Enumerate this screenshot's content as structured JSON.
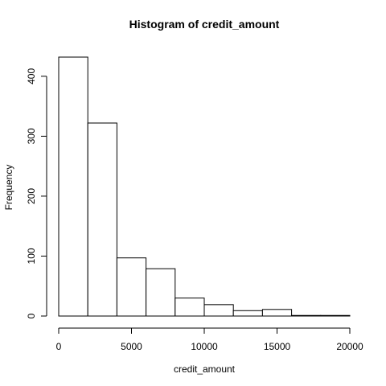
{
  "chart_data": {
    "type": "bar",
    "title": "Histogram of credit_amount",
    "xlabel": "credit_amount",
    "ylabel": "Frequency",
    "bin_edges": [
      0,
      2000,
      4000,
      6000,
      8000,
      10000,
      12000,
      14000,
      16000,
      18000,
      20000
    ],
    "values": [
      432,
      322,
      97,
      79,
      30,
      19,
      9,
      11,
      1,
      1
    ],
    "xlim": [
      0,
      20000
    ],
    "ylim": [
      0,
      432
    ],
    "x_ticks": [
      0,
      5000,
      10000,
      15000,
      20000
    ],
    "y_ticks": [
      0,
      100,
      200,
      300,
      400
    ],
    "grid": false,
    "bar_fill": "#ffffff",
    "bar_stroke": "#000000"
  }
}
